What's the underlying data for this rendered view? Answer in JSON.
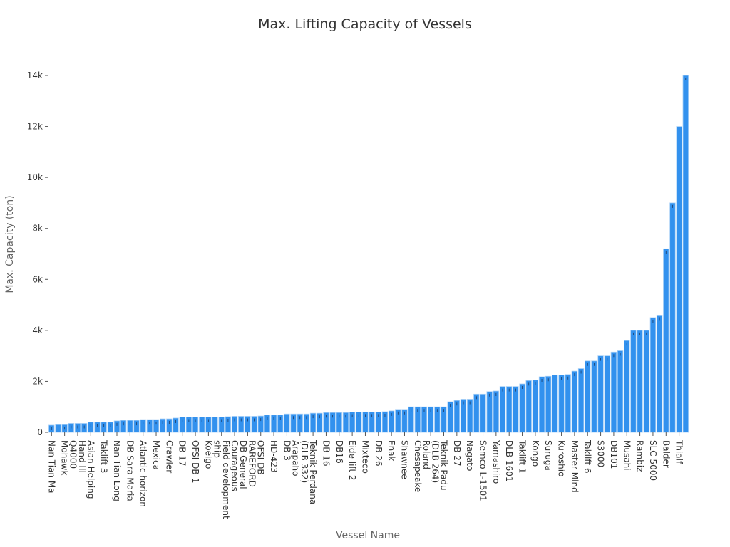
{
  "chart_data": {
    "type": "bar",
    "title": "Max. Lifting Capacity of Vessels",
    "xlabel": "Vessel Name",
    "ylabel": "Max. Capacity (ton)",
    "ylim": [
      0,
      14000
    ],
    "y_ticks": [
      0,
      2000,
      4000,
      6000,
      8000,
      10000,
      12000,
      14000
    ],
    "y_tick_labels": [
      "0",
      "2k",
      "4k",
      "6k",
      "8k",
      "10k",
      "12k",
      "14k"
    ],
    "grid": false,
    "bar_color": "#3291ee",
    "bar_edge_color": "#a8d0f7",
    "error_bar_color": "#1d3c66",
    "x_tick_every_n_bars": 2,
    "x_tick_labels": [
      "Nan Tian Ma",
      "Mohawk",
      "Q4000\nHand III",
      "Asian Helping",
      "Taklift 3",
      "Nan Tian Long",
      "DB Sara Maria",
      "Atlantic horizon",
      "Mexica",
      "Crawler",
      "DB 17",
      "OFSI DB-1",
      "Koeigo",
      "ship\nField development",
      "Courageous",
      "DB General\nRAREFORD",
      "OFSI DB",
      "HD-423",
      "DB 3",
      "Arapaho\n(DLB 332)",
      "Teknik Perdana",
      "DB 16",
      "DB16",
      "Eide lift 2",
      "Mixteco",
      "DB 26",
      "Enak",
      "Shawnee",
      "Chesapeake",
      "Roland\n(DLB 264)",
      "Teknik Padu",
      "DB 27",
      "Nagato",
      "Semco L-1501",
      "Yamashiro",
      "DLB 1601",
      "Taklift 1",
      "Kongo",
      "Suruga",
      "Kuroshio",
      "Master Mind",
      "Taklift 6",
      "S3000",
      "DB101",
      "Musahi",
      "Rambiz",
      "SLC 5000",
      "Balder",
      "Thialf"
    ],
    "values": [
      280,
      300,
      300,
      350,
      350,
      350,
      400,
      400,
      400,
      400,
      450,
      470,
      470,
      470,
      500,
      500,
      500,
      530,
      530,
      560,
      600,
      600,
      600,
      600,
      600,
      600,
      600,
      615,
      630,
      630,
      630,
      630,
      640,
      680,
      680,
      680,
      720,
      720,
      720,
      720,
      750,
      750,
      775,
      775,
      775,
      775,
      795,
      795,
      800,
      800,
      800,
      810,
      840,
      900,
      900,
      1000,
      1000,
      1000,
      1000,
      1000,
      1000,
      1200,
      1250,
      1300,
      1300,
      1500,
      1500,
      1600,
      1620,
      1800,
      1800,
      1800,
      1900,
      2030,
      2050,
      2180,
      2200,
      2250,
      2250,
      2270,
      2400,
      2500,
      2800,
      2800,
      3000,
      3000,
      3150,
      3200,
      3600,
      4000,
      4000,
      4000,
      4500,
      4600,
      7200,
      9000,
      12000,
      14000
    ]
  }
}
